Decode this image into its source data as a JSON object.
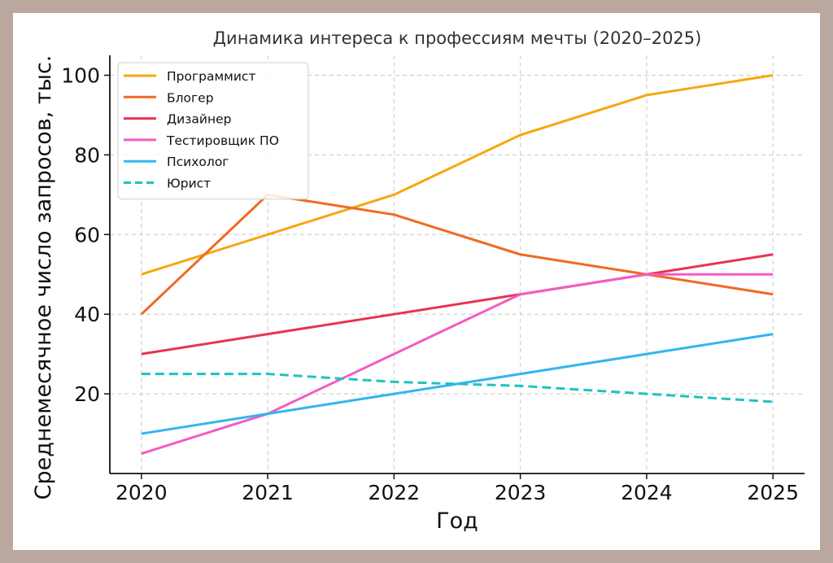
{
  "chart_data": {
    "type": "line",
    "title": "Динамика интереса к профессиям мечты (2020–2025)",
    "xlabel": "Год",
    "ylabel": "Среднемесячное число запросов, тыс.",
    "x": [
      2020,
      2021,
      2022,
      2023,
      2024,
      2025
    ],
    "xlim": [
      2019.75,
      2025.25
    ],
    "ylim": [
      0,
      105
    ],
    "yticks": [
      20,
      40,
      60,
      80,
      100
    ],
    "grid": true,
    "legend_position": "top-left",
    "series": [
      {
        "name": "Программист",
        "color": "#f5a80f",
        "dashed": false,
        "values": [
          50,
          60,
          70,
          85,
          95,
          100
        ]
      },
      {
        "name": "Блогер",
        "color": "#f06a22",
        "dashed": false,
        "values": [
          40,
          70,
          65,
          55,
          50,
          45
        ]
      },
      {
        "name": "Дизайнер",
        "color": "#e8334f",
        "dashed": false,
        "values": [
          30,
          35,
          40,
          45,
          50,
          55
        ]
      },
      {
        "name": "Тестировщик ПО",
        "color": "#f25cc4",
        "dashed": false,
        "values": [
          5,
          15,
          30,
          45,
          50,
          50
        ]
      },
      {
        "name": "Психолог",
        "color": "#33b5f0",
        "dashed": false,
        "values": [
          10,
          15,
          20,
          25,
          30,
          35
        ]
      },
      {
        "name": "Юрист",
        "color": "#1fc2c2",
        "dashed": true,
        "values": [
          25,
          25,
          23,
          22,
          20,
          18
        ]
      }
    ]
  }
}
